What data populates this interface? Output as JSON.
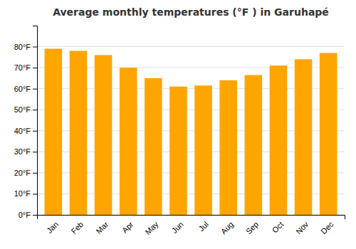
{
  "chart_data": {
    "type": "bar",
    "title": "Average monthly temperatures (°F ) in Garuhapé",
    "categories": [
      "Jan",
      "Feb",
      "Mar",
      "Apr",
      "May",
      "Jun",
      "Jul",
      "Aug",
      "Sep",
      "Oct",
      "Nov",
      "Dec"
    ],
    "values": [
      79,
      78,
      76,
      70,
      65,
      61,
      61.5,
      64,
      66.5,
      71,
      74,
      77
    ],
    "color": "#FFA500",
    "ylim": [
      0,
      90
    ],
    "yticks": [
      {
        "value": 0,
        "label": "0°F"
      },
      {
        "value": 10,
        "label": "10°F"
      },
      {
        "value": 20,
        "label": "20°F"
      },
      {
        "value": 30,
        "label": "30°F"
      },
      {
        "value": 40,
        "label": "40°F"
      },
      {
        "value": 50,
        "label": "50°F"
      },
      {
        "value": 60,
        "label": "60°F"
      },
      {
        "value": 70,
        "label": "70°F"
      },
      {
        "value": 80,
        "label": "80°F"
      }
    ],
    "grid": true
  }
}
